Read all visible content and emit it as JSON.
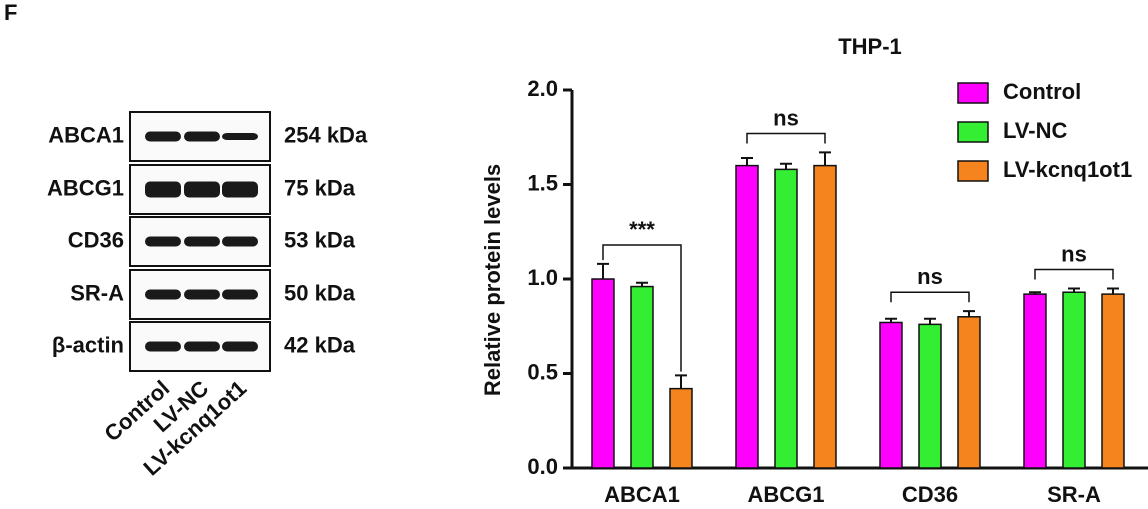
{
  "panel_label": "F",
  "blot": {
    "proteins": [
      "ABCA1",
      "ABCG1",
      "CD36",
      "SR-A",
      "β-actin"
    ],
    "sizes": [
      "254 kDa",
      "75 kDa",
      "53 kDa",
      "50 kDa",
      "42 kDa"
    ],
    "lanes": [
      "Control",
      "LV-NC",
      "LV-kcnq1ot1"
    ]
  },
  "chart_data": {
    "type": "bar",
    "title": "THP-1",
    "ylabel": "Relative protein levels",
    "categories": [
      "ABCA1",
      "ABCG1",
      "CD36",
      "SR-A"
    ],
    "series": [
      {
        "name": "Control",
        "color": "#ff00ff",
        "values": [
          1.0,
          1.6,
          0.77,
          0.92
        ],
        "errors": [
          0.08,
          0.04,
          0.02,
          0.01
        ]
      },
      {
        "name": "LV-NC",
        "color": "#33ee33",
        "values": [
          0.96,
          1.58,
          0.76,
          0.93
        ],
        "errors": [
          0.02,
          0.03,
          0.03,
          0.02
        ]
      },
      {
        "name": "LV-kcnq1ot1",
        "color": "#f5841f",
        "values": [
          0.42,
          1.6,
          0.8,
          0.92
        ],
        "errors": [
          0.07,
          0.07,
          0.03,
          0.03
        ]
      }
    ],
    "significance": [
      "***",
      "ns",
      "ns",
      "ns"
    ],
    "ylim": [
      0,
      2
    ],
    "yticks": [
      {
        "value": 0,
        "label": "0.0"
      },
      0.5,
      {
        "value": 1,
        "label": "1.0"
      },
      1.5,
      {
        "value": 2,
        "label": "2.0"
      }
    ],
    "legend": "top-right"
  }
}
